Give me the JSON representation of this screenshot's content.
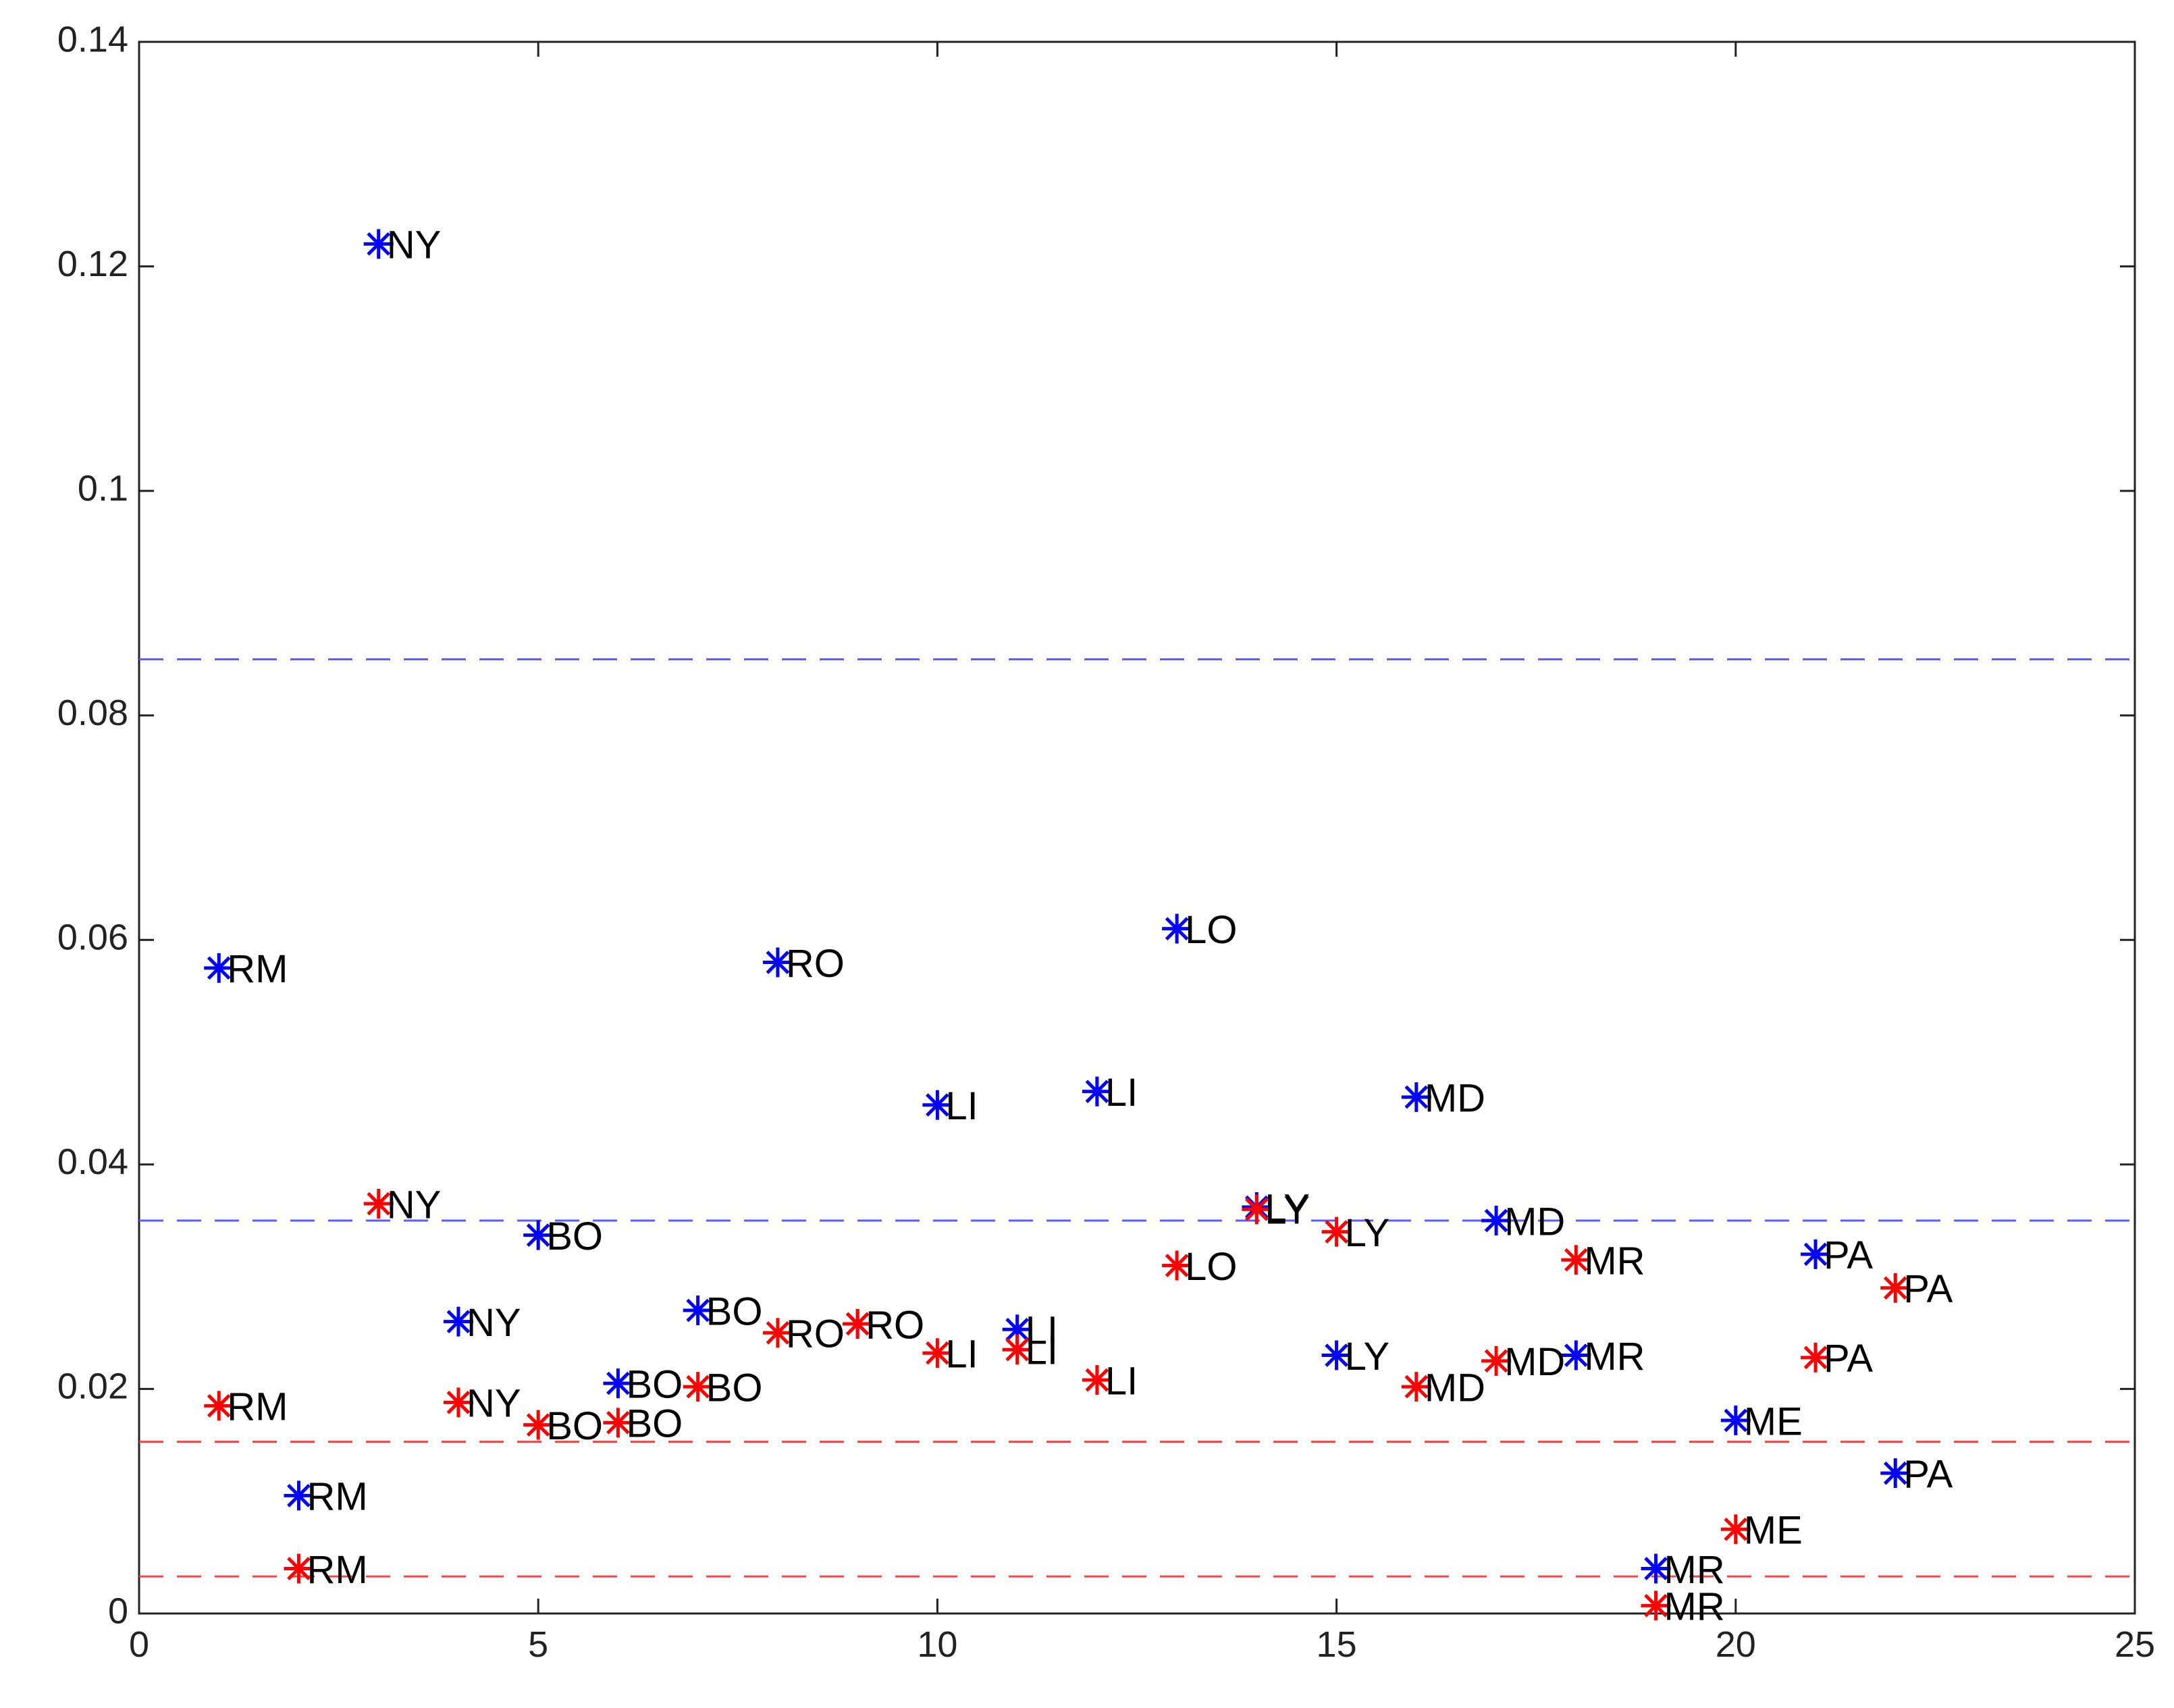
{
  "chart_data": {
    "type": "scatter",
    "x": [
      1,
      2,
      3,
      4,
      5,
      6,
      7,
      8,
      9,
      10,
      11,
      12,
      13,
      14,
      15,
      16,
      17,
      18,
      19,
      20,
      21,
      22
    ],
    "series": [
      {
        "color": "#0000ff",
        "values": [
          0.0575,
          0.0105,
          0.122,
          0.026,
          0.0337,
          0.0205,
          0.027,
          0.058,
          0.0258,
          0.0453,
          0.0253,
          0.0465,
          0.061,
          0.0362,
          0.023,
          0.046,
          0.035,
          0.023,
          0.004,
          0.0172,
          0.032,
          0.0125
        ],
        "labels": [
          "RM",
          "RM",
          "NY",
          "NY",
          "BO",
          "BO",
          "BO",
          "RO",
          "RO",
          "LI",
          "LI",
          "LI",
          "LO",
          "LY",
          "LY",
          "MD",
          "MD",
          "MR",
          "MR",
          "ME",
          "PA",
          "PA"
        ]
      },
      {
        "color": "#ff0000",
        "values": [
          0.0185,
          0.004,
          0.0365,
          0.0188,
          0.0168,
          0.017,
          0.0202,
          0.025,
          0.0258,
          0.0232,
          0.0235,
          0.0208,
          0.031,
          0.036,
          0.034,
          0.0202,
          0.0225,
          0.0315,
          0.0007,
          0.0075,
          0.0228,
          0.029
        ],
        "labels": [
          "RM",
          "RM",
          "NY",
          "NY",
          "BO",
          "BO",
          "BO",
          "RO",
          "RO",
          "LI",
          "LI",
          "LI",
          "LO",
          "LY",
          "LY",
          "MD",
          "MD",
          "MR",
          "MR",
          "ME",
          "PA",
          "PA"
        ]
      }
    ],
    "hlines": [
      {
        "value": 0.085,
        "color": "#5a5aff"
      },
      {
        "value": 0.035,
        "color": "#5a5aff"
      },
      {
        "value": 0.0153,
        "color": "#ff4040"
      },
      {
        "value": 0.0033,
        "color": "#ff4040"
      }
    ],
    "xlim": [
      0,
      25
    ],
    "xticks": [
      0,
      5,
      10,
      15,
      20,
      25
    ],
    "ylim": [
      0,
      0.14
    ],
    "yticks": [
      0,
      0.02,
      0.04,
      0.06,
      0.08,
      0.1,
      0.12,
      0.14
    ]
  }
}
